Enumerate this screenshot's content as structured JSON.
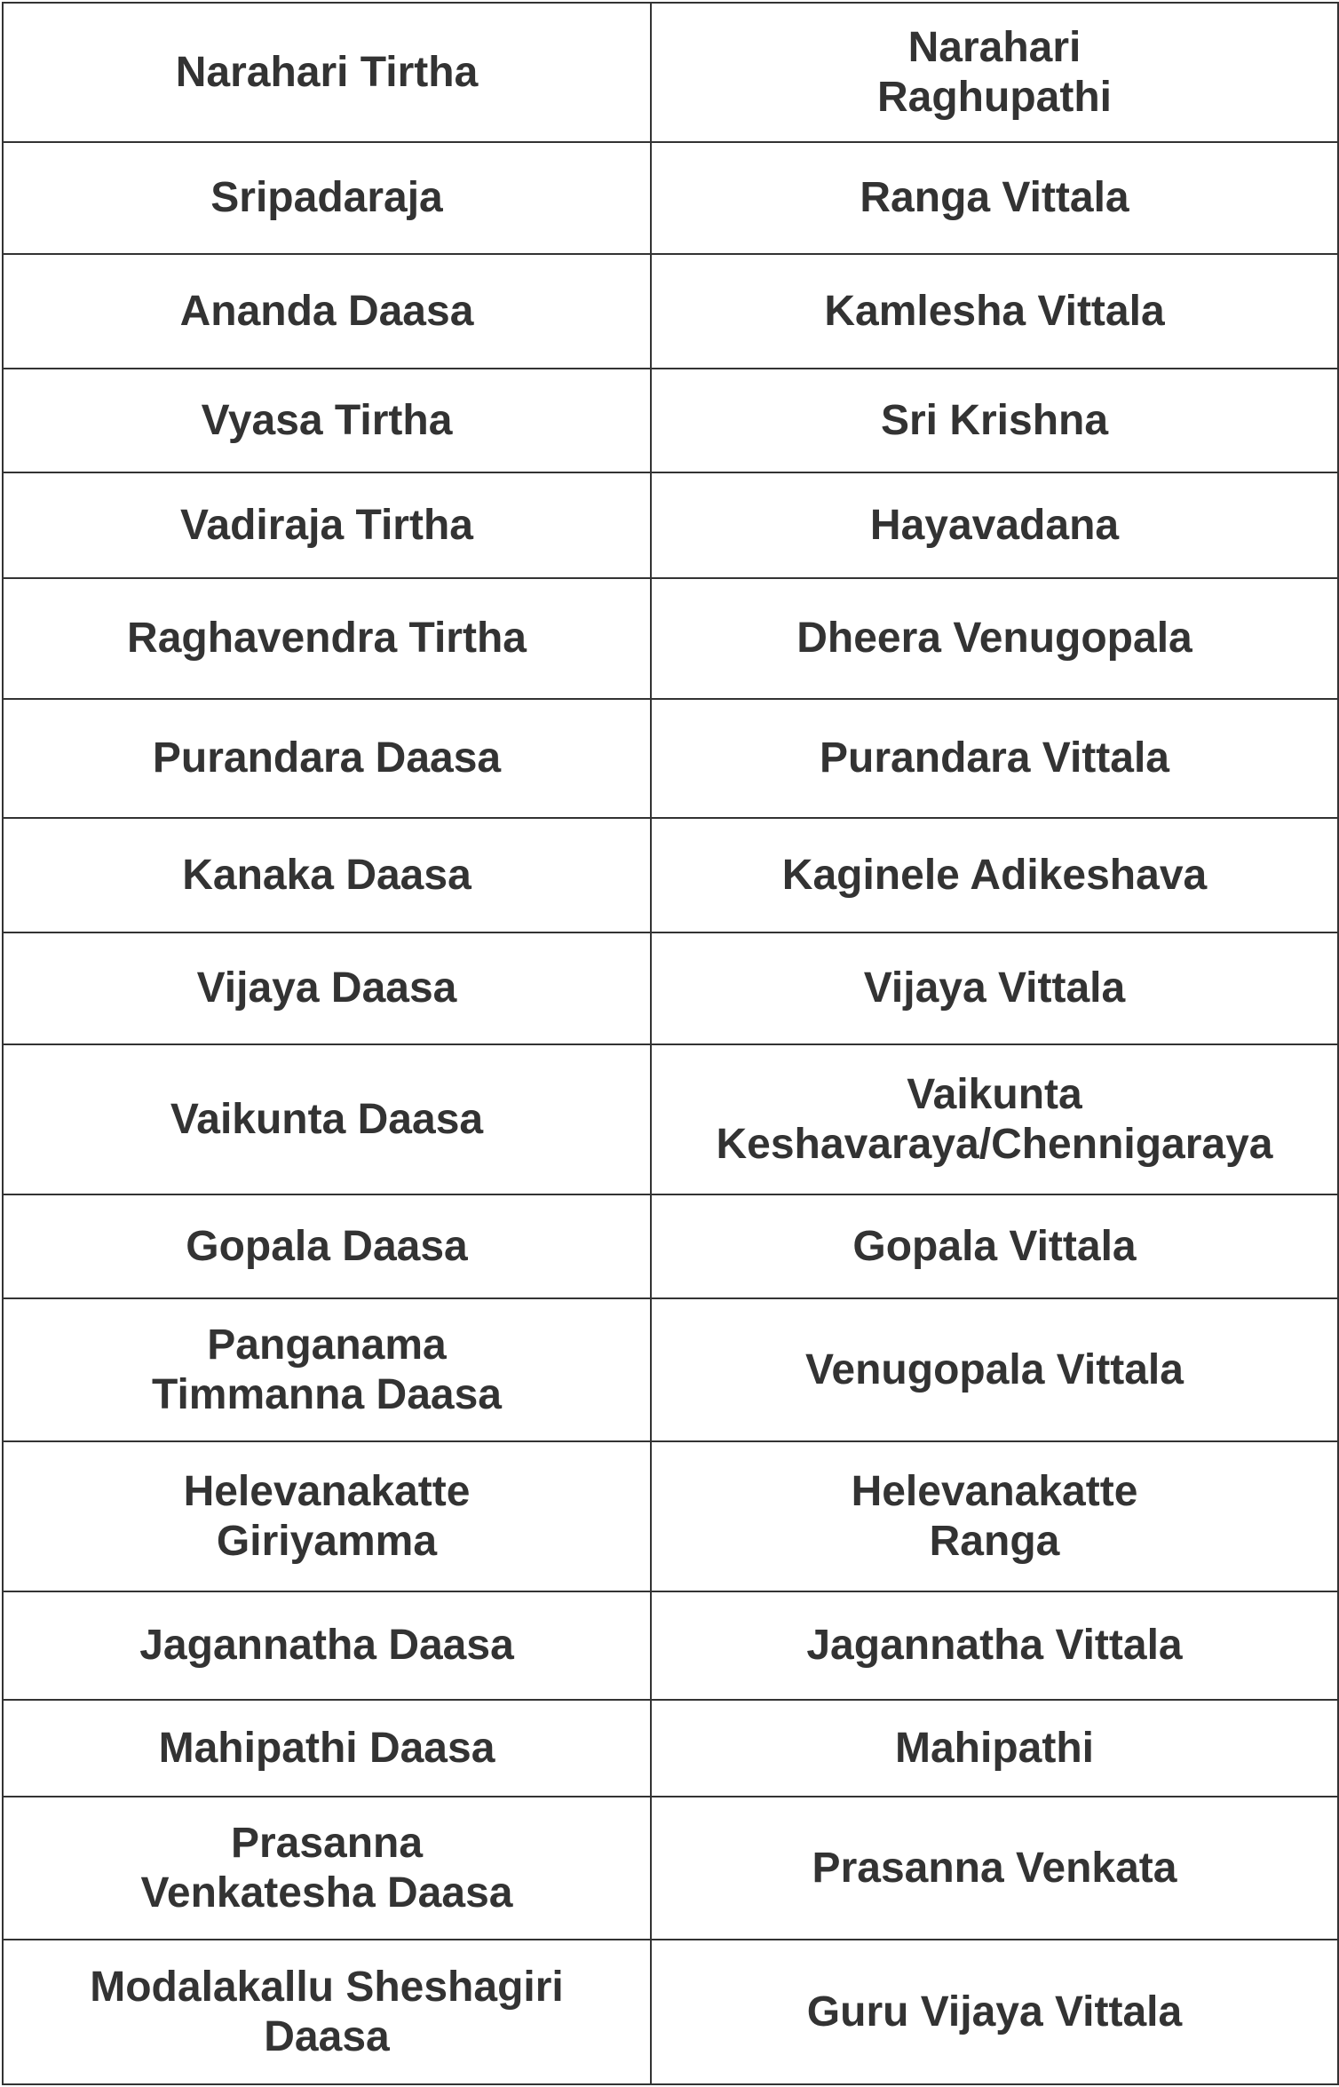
{
  "rows": [
    {
      "left": "Narahari Tirtha",
      "right": "Narahari\nRaghupathi"
    },
    {
      "left": "Sripadaraja",
      "right": "Ranga Vittala"
    },
    {
      "left": "Ananda Daasa",
      "right": "Kamlesha Vittala"
    },
    {
      "left": "Vyasa Tirtha",
      "right": "Sri Krishna"
    },
    {
      "left": "Vadiraja Tirtha",
      "right": "Hayavadana"
    },
    {
      "left": "Raghavendra Tirtha",
      "right": "Dheera Venugopala"
    },
    {
      "left": "Purandara Daasa",
      "right": "Purandara Vittala"
    },
    {
      "left": "Kanaka Daasa",
      "right": "Kaginele Adikeshava"
    },
    {
      "left": "Vijaya Daasa",
      "right": "Vijaya Vittala"
    },
    {
      "left": "Vaikunta Daasa",
      "right": "Vaikunta\nKeshavaraya/Chennigaraya"
    },
    {
      "left": "Gopala Daasa",
      "right": "Gopala Vittala"
    },
    {
      "left": "Panganama\nTimmanna Daasa",
      "right": "Venugopala Vittala"
    },
    {
      "left": "Helevanakatte\nGiriyamma",
      "right": "Helevanakatte\nRanga"
    },
    {
      "left": "Jagannatha Daasa",
      "right": "Jagannatha Vittala"
    },
    {
      "left": "Mahipathi Daasa",
      "right": "Mahipathi"
    },
    {
      "left": "Prasanna\nVenkatesha Daasa",
      "right": "Prasanna Venkata"
    },
    {
      "left": "Modalakallu Sheshagiri\nDaasa",
      "right": "Guru Vijaya Vittala"
    }
  ]
}
